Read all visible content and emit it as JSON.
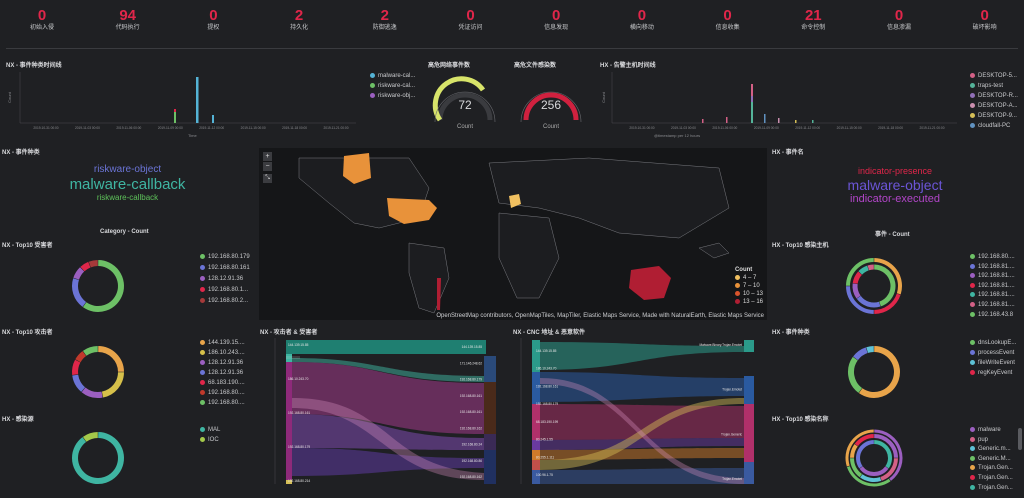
{
  "metrics": [
    {
      "value": "0",
      "label": "初始入侵"
    },
    {
      "value": "94",
      "label": "代码执行"
    },
    {
      "value": "0",
      "label": "提权"
    },
    {
      "value": "2",
      "label": "持久化"
    },
    {
      "value": "2",
      "label": "防御逃逸"
    },
    {
      "value": "0",
      "label": "凭证访问"
    },
    {
      "value": "0",
      "label": "信息发现"
    },
    {
      "value": "0",
      "label": "横向移动"
    },
    {
      "value": "0",
      "label": "信息收集"
    },
    {
      "value": "21",
      "label": "命令控制"
    },
    {
      "value": "0",
      "label": "信息渗漏"
    },
    {
      "value": "0",
      "label": "破坏影响"
    }
  ],
  "timeline_left": {
    "title": "NX - 事件种类时间线",
    "ylabel": "Count",
    "xlabel": "Time",
    "ticks": [
      "2019-10-31 00:00",
      "2019-11-03 00:00",
      "2019-11-06 00:00",
      "2019-11-09 00:00",
      "2019-11-12 00:00",
      "2019-11-15 00:00",
      "2019-11-18 00:00",
      "2019-11-21 00:00"
    ],
    "legend": [
      {
        "name": "malware-cal...",
        "color": "#54b3d6"
      },
      {
        "name": "riskware-cal...",
        "color": "#6dc066"
      },
      {
        "name": "riskware-obj...",
        "color": "#9b5fc0"
      }
    ]
  },
  "gauge_nx": {
    "title": "高危网络事件数",
    "value": "72",
    "label": "Count",
    "color": "#d8e46a"
  },
  "gauge_hx": {
    "title": "高危文件感染数",
    "value": "256",
    "label": "Count",
    "color": "#d0213f"
  },
  "timeline_right": {
    "title": "HX - 告警主机时间线",
    "ylabel": "Count",
    "xlabel": "@timestamp per 12 hours",
    "ticks": [
      "2019-10-31 00:00",
      "2019-11-03 00:00",
      "2019-11-06 00:00",
      "2019-11-09 00:00",
      "2019-11-12 00:00",
      "2019-11-15 00:00",
      "2019-11-18 00:00",
      "2019-11-21 00:00"
    ],
    "legend": [
      {
        "name": "DESKTOP-5...",
        "color": "#d36086"
      },
      {
        "name": "traps-test",
        "color": "#54b399"
      },
      {
        "name": "DESKTOP-R...",
        "color": "#9170b8"
      },
      {
        "name": "DESKTOP-A...",
        "color": "#ca8eae"
      },
      {
        "name": "DESKTOP-9...",
        "color": "#d6bf57"
      },
      {
        "name": "cloudfall-PC",
        "color": "#6092c0"
      }
    ]
  },
  "nx_event_types": {
    "title": "NX - 事件种类",
    "words": [
      {
        "text": "riskware-object",
        "color": "#6b74d6",
        "size": 10
      },
      {
        "text": "malware-callback",
        "color": "#3fb5a2",
        "size": 15
      },
      {
        "text": "riskware-callback",
        "color": "#5ec25a",
        "size": 8
      }
    ]
  },
  "hx_event_names": {
    "title": "HX - 事件名",
    "words": [
      {
        "text": "indicator-presence",
        "color": "#e0264a",
        "size": 9
      },
      {
        "text": "malware-object",
        "color": "#6b55d6",
        "size": 14
      },
      {
        "text": "indicator-executed",
        "color": "#b245c9",
        "size": 11
      }
    ]
  },
  "map": {
    "zoom_in": "+",
    "zoom_out": "−",
    "legend_title": "Count",
    "legend": [
      {
        "label": "4 – 7",
        "color": "#f0c060"
      },
      {
        "label": "7 – 10",
        "color": "#e8923a"
      },
      {
        "label": "10 – 13",
        "color": "#d9542c"
      },
      {
        "label": "13 – 16",
        "color": "#b01e33"
      }
    ],
    "attribution": "OpenStreetMap contributors, OpenMapTiles, MapTiler, Elastic Maps Service, Made with NaturalEarth, Elastic Maps Service"
  },
  "nx_victims": {
    "title": "NX - Top10 受害者",
    "chart_title": "Category - Count",
    "legend": [
      {
        "name": "192.168.80.179",
        "color": "#6dc066"
      },
      {
        "name": "192.168.80.161",
        "color": "#6b74d6"
      },
      {
        "name": "128.12.91.36",
        "color": "#9b5fc0"
      },
      {
        "name": "192.168.80.1...",
        "color": "#e0264a"
      },
      {
        "name": "192.168.80.2...",
        "color": "#a53a3a"
      }
    ]
  },
  "nx_attackers": {
    "title": "NX - Top10 攻击者",
    "legend": [
      {
        "name": "144.139.15....",
        "color": "#e8a44a"
      },
      {
        "name": "186.10.243....",
        "color": "#d6c04a"
      },
      {
        "name": "128.12.91.36",
        "color": "#9b5fc0"
      },
      {
        "name": "128.12.91.36",
        "color": "#6b74d6"
      },
      {
        "name": "68.183.190....",
        "color": "#e0264a"
      },
      {
        "name": "192.168.80....",
        "color": "#c0392b"
      },
      {
        "name": "192.168.80....",
        "color": "#6dc066"
      }
    ]
  },
  "hx_infection_source": {
    "title": "HX - 感染源",
    "legend": [
      {
        "name": "MAL",
        "color": "#3fb5a2"
      },
      {
        "name": "IOC",
        "color": "#a4c94a"
      }
    ]
  },
  "sankey_nx": {
    "title": "NX - 攻击者 & 受害者",
    "left_nodes": [
      "144.139.15.85",
      "186.10.243.70",
      "192.168.80.161",
      "192.168.80.179",
      "192.168.80.214"
    ],
    "right_nodes": [
      "144.139.15.85",
      "171.146.248.62",
      "192.168.80.179",
      "192.168.80.161",
      "192.168.80.161",
      "192.168.80.162",
      "192.168.80.24",
      "192.168.80.86",
      "192.168.80.162"
    ]
  },
  "sankey_cnc": {
    "title": "NX - CNC 地址 & 恶意软件",
    "left_nodes": [
      "144.139.15.85",
      "186.10.243.70",
      "192.168.80.161",
      "192.168.80.179",
      "68.183.190.199",
      "80.245.1.55",
      "80.255.1.111",
      "100.96.1.75"
    ],
    "right_nodes": [
      "Malware.Binary.Trojan.Emotet",
      "Trojan.Emotet",
      "Trojan.Generic",
      "Trojan.Emotet"
    ]
  },
  "hx_event_categories": {
    "title": "HX - 事件种类",
    "chart_title": "事件 - Count",
    "legend": [
      {
        "name": "dnsLookupE...",
        "color": "#6dc066"
      },
      {
        "name": "processEvent",
        "color": "#6b74d6"
      },
      {
        "name": "fileWriteEvent",
        "color": "#5ec2d6"
      },
      {
        "name": "regKeyEvent",
        "color": "#e0264a"
      }
    ]
  },
  "hx_infected_hosts": {
    "title": "HX - Top10 感染主机",
    "legend": [
      {
        "name": "192.168.80....",
        "color": "#6dc066"
      },
      {
        "name": "192.168.81....",
        "color": "#6b74d6"
      },
      {
        "name": "192.168.81....",
        "color": "#9b5fc0"
      },
      {
        "name": "192.168.81....",
        "color": "#e0264a"
      },
      {
        "name": "192.168.81....",
        "color": "#3fb5a2"
      },
      {
        "name": "192.168.81....",
        "color": "#d36086"
      },
      {
        "name": "192.168.43.8",
        "color": "#6dc066"
      }
    ]
  },
  "hx_infection_names": {
    "title": "HX - Top10 感染名称",
    "legend": [
      {
        "name": "malware",
        "color": "#9b5fc0"
      },
      {
        "name": "pup",
        "color": "#d36086"
      },
      {
        "name": "Generic.m...",
        "color": "#5ec2d6"
      },
      {
        "name": "Generic.M...",
        "color": "#6dc066"
      },
      {
        "name": "Trojan.Gen...",
        "color": "#e8a44a"
      },
      {
        "name": "Trojan.Gen...",
        "color": "#e0264a"
      },
      {
        "name": "Trojan.Gen...",
        "color": "#3fb5a2"
      }
    ]
  }
}
